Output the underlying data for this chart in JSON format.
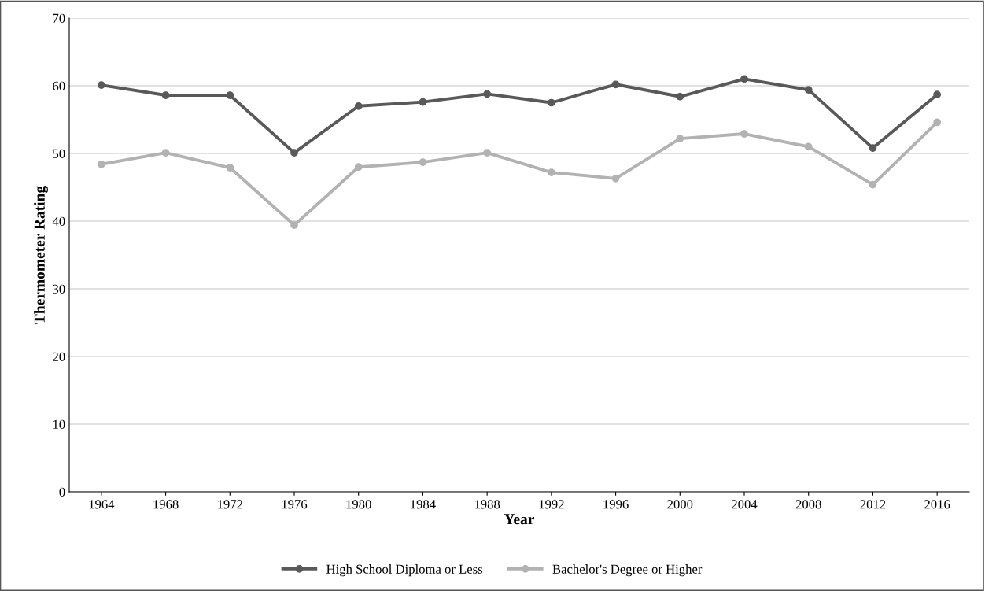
{
  "chart_data": {
    "type": "line",
    "xlabel": "Year",
    "ylabel": "Thermometer Rating",
    "categories": [
      "1964",
      "1968",
      "1972",
      "1976",
      "1980",
      "1984",
      "1988",
      "1992",
      "1996",
      "2000",
      "2004",
      "2008",
      "2012",
      "2016"
    ],
    "series": [
      {
        "name": "High School Diploma or Less",
        "color": "#595959",
        "values": [
          60.1,
          58.6,
          58.6,
          50.1,
          57.0,
          57.6,
          58.8,
          57.5,
          60.2,
          58.4,
          61.0,
          59.4,
          50.8,
          58.7
        ]
      },
      {
        "name": "Bachelor's Degree or Higher",
        "color": "#b2b2b2",
        "values": [
          48.4,
          50.1,
          47.9,
          39.4,
          48.0,
          48.7,
          50.1,
          47.2,
          46.3,
          52.2,
          52.9,
          51.0,
          45.4,
          54.6
        ]
      }
    ],
    "ylim": [
      0,
      70
    ],
    "yticks": [
      0,
      10,
      20,
      30,
      40,
      50,
      60,
      70
    ],
    "grid": "y",
    "legend": "bottom",
    "marker": "circle",
    "line_style": "solid"
  }
}
